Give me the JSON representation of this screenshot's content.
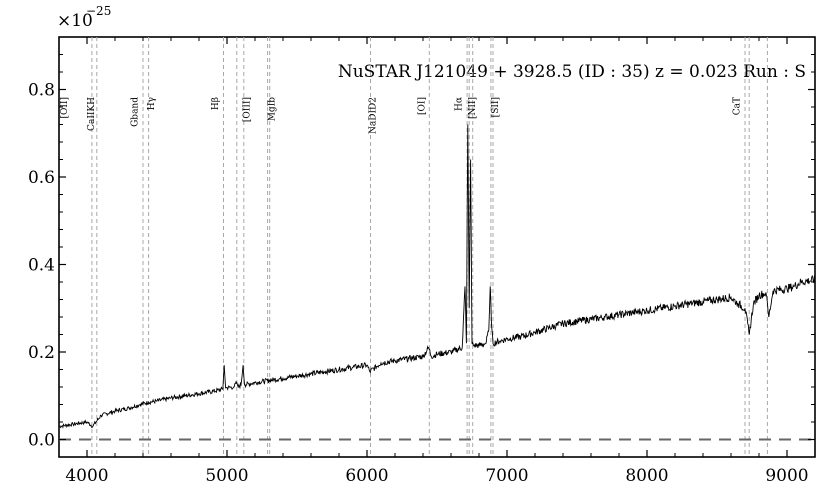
{
  "chart_data": {
    "type": "line",
    "title": "NuSTAR J121049 + 3928.5 (ID : 35)   z = 0.023   Run : S",
    "xlabel": "",
    "ylabel": "",
    "y_multiplier": {
      "base": "×10",
      "exponent": "−25"
    },
    "xlim": [
      3800,
      9200
    ],
    "ylim": [
      -0.04,
      0.92
    ],
    "x_ticks": [
      4000,
      5000,
      6000,
      7000,
      8000,
      9000
    ],
    "x_tick_labels": [
      "4000",
      "5000",
      "6000",
      "7000",
      "8000",
      "9000"
    ],
    "y_ticks": [
      0.0,
      0.2,
      0.4,
      0.6,
      0.8
    ],
    "y_tick_labels": [
      "0.0",
      "0.2",
      "0.4",
      "0.6",
      "0.8"
    ],
    "zero_line": {
      "y": 0.0,
      "style": "dashed"
    },
    "grid": false,
    "series": [
      {
        "x": [
          3800,
          3900,
          4000,
          4040,
          4100,
          4200,
          4300,
          4380,
          4440,
          4500,
          4600,
          4700,
          4800,
          4900,
          4970,
          4980,
          4990,
          5050,
          5070,
          5080,
          5100,
          5115,
          5125,
          5200,
          5300,
          5400,
          5500,
          5600,
          5700,
          5800,
          5900,
          6000,
          6020,
          6100,
          6200,
          6300,
          6400,
          6440,
          6460,
          6500,
          6600,
          6680,
          6700,
          6710,
          6720,
          6730,
          6740,
          6750,
          6760,
          6800,
          6850,
          6870,
          6880,
          6890,
          6900,
          6950,
          7000,
          7100,
          7200,
          7300,
          7400,
          7500,
          7600,
          7700,
          7800,
          7900,
          8000,
          8100,
          8200,
          8300,
          8400,
          8500,
          8600,
          8650,
          8700,
          8730,
          8760,
          8800,
          8850,
          8870,
          8900,
          9000,
          9050,
          9100,
          9200
        ],
        "y": [
          0.03,
          0.035,
          0.04,
          0.03,
          0.055,
          0.065,
          0.072,
          0.08,
          0.085,
          0.088,
          0.095,
          0.1,
          0.105,
          0.11,
          0.115,
          0.17,
          0.118,
          0.12,
          0.13,
          0.12,
          0.125,
          0.17,
          0.125,
          0.13,
          0.135,
          0.14,
          0.145,
          0.15,
          0.155,
          0.16,
          0.165,
          0.17,
          0.155,
          0.175,
          0.18,
          0.185,
          0.19,
          0.21,
          0.19,
          0.195,
          0.2,
          0.21,
          0.35,
          0.22,
          0.72,
          0.3,
          0.64,
          0.22,
          0.215,
          0.215,
          0.22,
          0.25,
          0.35,
          0.26,
          0.22,
          0.225,
          0.23,
          0.235,
          0.245,
          0.255,
          0.265,
          0.27,
          0.275,
          0.28,
          0.285,
          0.29,
          0.295,
          0.3,
          0.305,
          0.31,
          0.315,
          0.32,
          0.325,
          0.31,
          0.3,
          0.24,
          0.31,
          0.33,
          0.335,
          0.28,
          0.34,
          0.345,
          0.35,
          0.36,
          0.365
        ]
      }
    ],
    "lines": [
      {
        "label": "[OII]",
        "x": 3727
      },
      {
        "label": "CaIIKH",
        "x": 4035
      },
      {
        "label": "CaIIKH",
        "x": 4070
      },
      {
        "label": "Gband",
        "x": 4400
      },
      {
        "label": "Hγ",
        "x": 4440
      },
      {
        "label": "Hβ",
        "x": 4975
      },
      {
        "label": "[OIII]",
        "x": 5070
      },
      {
        "label": "[OIII]",
        "x": 5120
      },
      {
        "label": "MgIb",
        "x": 5290
      },
      {
        "label": "MgIb",
        "x": 5305
      },
      {
        "label": "NaDID2",
        "x": 6025
      },
      {
        "label": "[OI]",
        "x": 6445
      },
      {
        "label": "Hα",
        "x": 6715
      },
      {
        "label": "[NII]",
        "x": 6730
      },
      {
        "label": "[NII]",
        "x": 6755
      },
      {
        "label": "[SII]",
        "x": 6885
      },
      {
        "label": "[SII]",
        "x": 6900
      },
      {
        "label": "CaT",
        "x": 8700
      },
      {
        "label": "CaT",
        "x": 8730
      },
      {
        "label": "CaT",
        "x": 8860
      }
    ],
    "line_labels": [
      {
        "text": "[OII]",
        "x": 3800
      },
      {
        "text": "CaIIKH",
        "x": 4050
      },
      {
        "text": "Gband",
        "x": 4360
      },
      {
        "text": "Hγ",
        "x": 4480
      },
      {
        "text": "Hβ",
        "x": 4935
      },
      {
        "text": "[OIII]",
        "x": 5160
      },
      {
        "text": "MgIb",
        "x": 5340
      },
      {
        "text": "NaDID2",
        "x": 6060
      },
      {
        "text": "[OI]",
        "x": 6410
      },
      {
        "text": "Hα",
        "x": 6675
      },
      {
        "text": "[NII]",
        "x": 6770
      },
      {
        "text": "[SII]",
        "x": 6935
      },
      {
        "text": "CaT",
        "x": 8660
      }
    ]
  }
}
